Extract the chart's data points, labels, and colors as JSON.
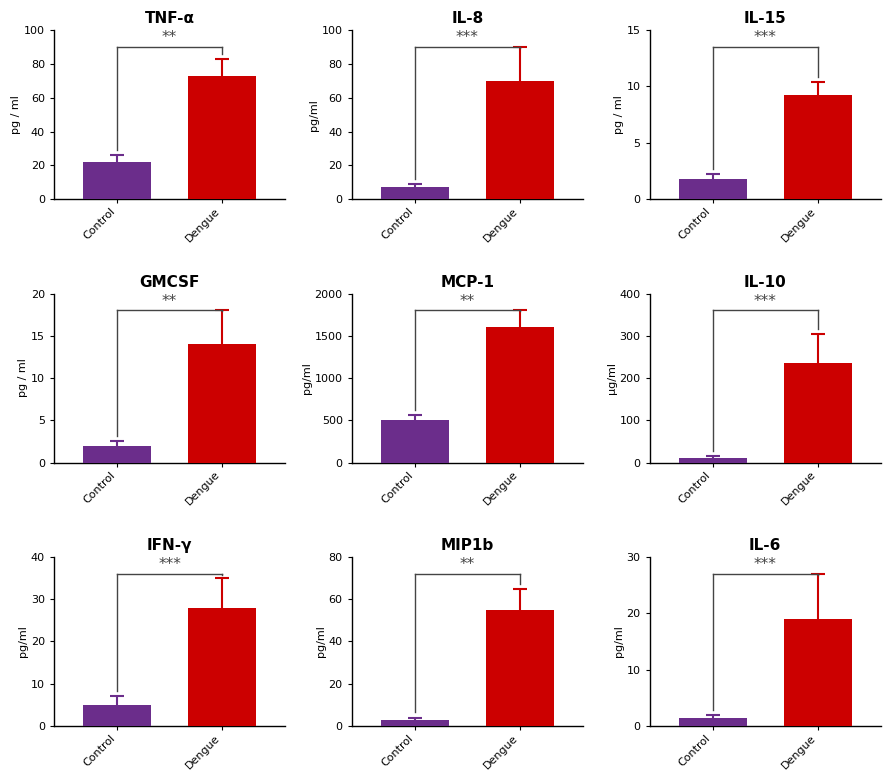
{
  "subplots": [
    {
      "title": "TNF-α",
      "ylabel": "pg / ml",
      "ylim": [
        0,
        100
      ],
      "yticks": [
        0,
        20,
        40,
        60,
        80,
        100
      ],
      "control_val": 22,
      "control_err": 4,
      "dengue_val": 73,
      "dengue_err": 10,
      "sig": "**"
    },
    {
      "title": "IL-8",
      "ylabel": "pg/ml",
      "ylim": [
        0,
        100
      ],
      "yticks": [
        0,
        20,
        40,
        60,
        80,
        100
      ],
      "control_val": 7,
      "control_err": 2,
      "dengue_val": 70,
      "dengue_err": 20,
      "sig": "***"
    },
    {
      "title": "IL-15",
      "ylabel": "pg / ml",
      "ylim": [
        0,
        15
      ],
      "yticks": [
        0,
        5,
        10,
        15
      ],
      "control_val": 1.8,
      "control_err": 0.4,
      "dengue_val": 9.2,
      "dengue_err": 1.2,
      "sig": "***"
    },
    {
      "title": "GMCSF",
      "ylabel": "pg / ml",
      "ylim": [
        0,
        20
      ],
      "yticks": [
        0,
        5,
        10,
        15,
        20
      ],
      "control_val": 2,
      "control_err": 0.5,
      "dengue_val": 14,
      "dengue_err": 4,
      "sig": "**"
    },
    {
      "title": "MCP-1",
      "ylabel": "pg/ml",
      "ylim": [
        0,
        2000
      ],
      "yticks": [
        0,
        500,
        1000,
        1500,
        2000
      ],
      "control_val": 500,
      "control_err": 60,
      "dengue_val": 1600,
      "dengue_err": 200,
      "sig": "**"
    },
    {
      "title": "IL-10",
      "ylabel": "µg/ml",
      "ylim": [
        0,
        400
      ],
      "yticks": [
        0,
        100,
        200,
        300,
        400
      ],
      "control_val": 10,
      "control_err": 5,
      "dengue_val": 235,
      "dengue_err": 70,
      "sig": "***"
    },
    {
      "title": "IFN-γ",
      "ylabel": "pg/ml",
      "ylim": [
        0,
        40
      ],
      "yticks": [
        0,
        10,
        20,
        30,
        40
      ],
      "control_val": 5,
      "control_err": 2,
      "dengue_val": 28,
      "dengue_err": 7,
      "sig": "***"
    },
    {
      "title": "MIP1b",
      "ylabel": "pg/ml",
      "ylim": [
        0,
        80
      ],
      "yticks": [
        0,
        20,
        40,
        60,
        80
      ],
      "control_val": 3,
      "control_err": 1,
      "dengue_val": 55,
      "dengue_err": 10,
      "sig": "**"
    },
    {
      "title": "IL-6",
      "ylabel": "pg/ml",
      "ylim": [
        0,
        30
      ],
      "yticks": [
        0,
        10,
        20,
        30
      ],
      "control_val": 1.5,
      "control_err": 0.5,
      "dengue_val": 19,
      "dengue_err": 8,
      "sig": "***"
    }
  ],
  "control_color": "#6B2D8B",
  "dengue_color": "#CC0000",
  "bar_width": 0.65,
  "sig_line_color": "#444444",
  "background_color": "#ffffff"
}
